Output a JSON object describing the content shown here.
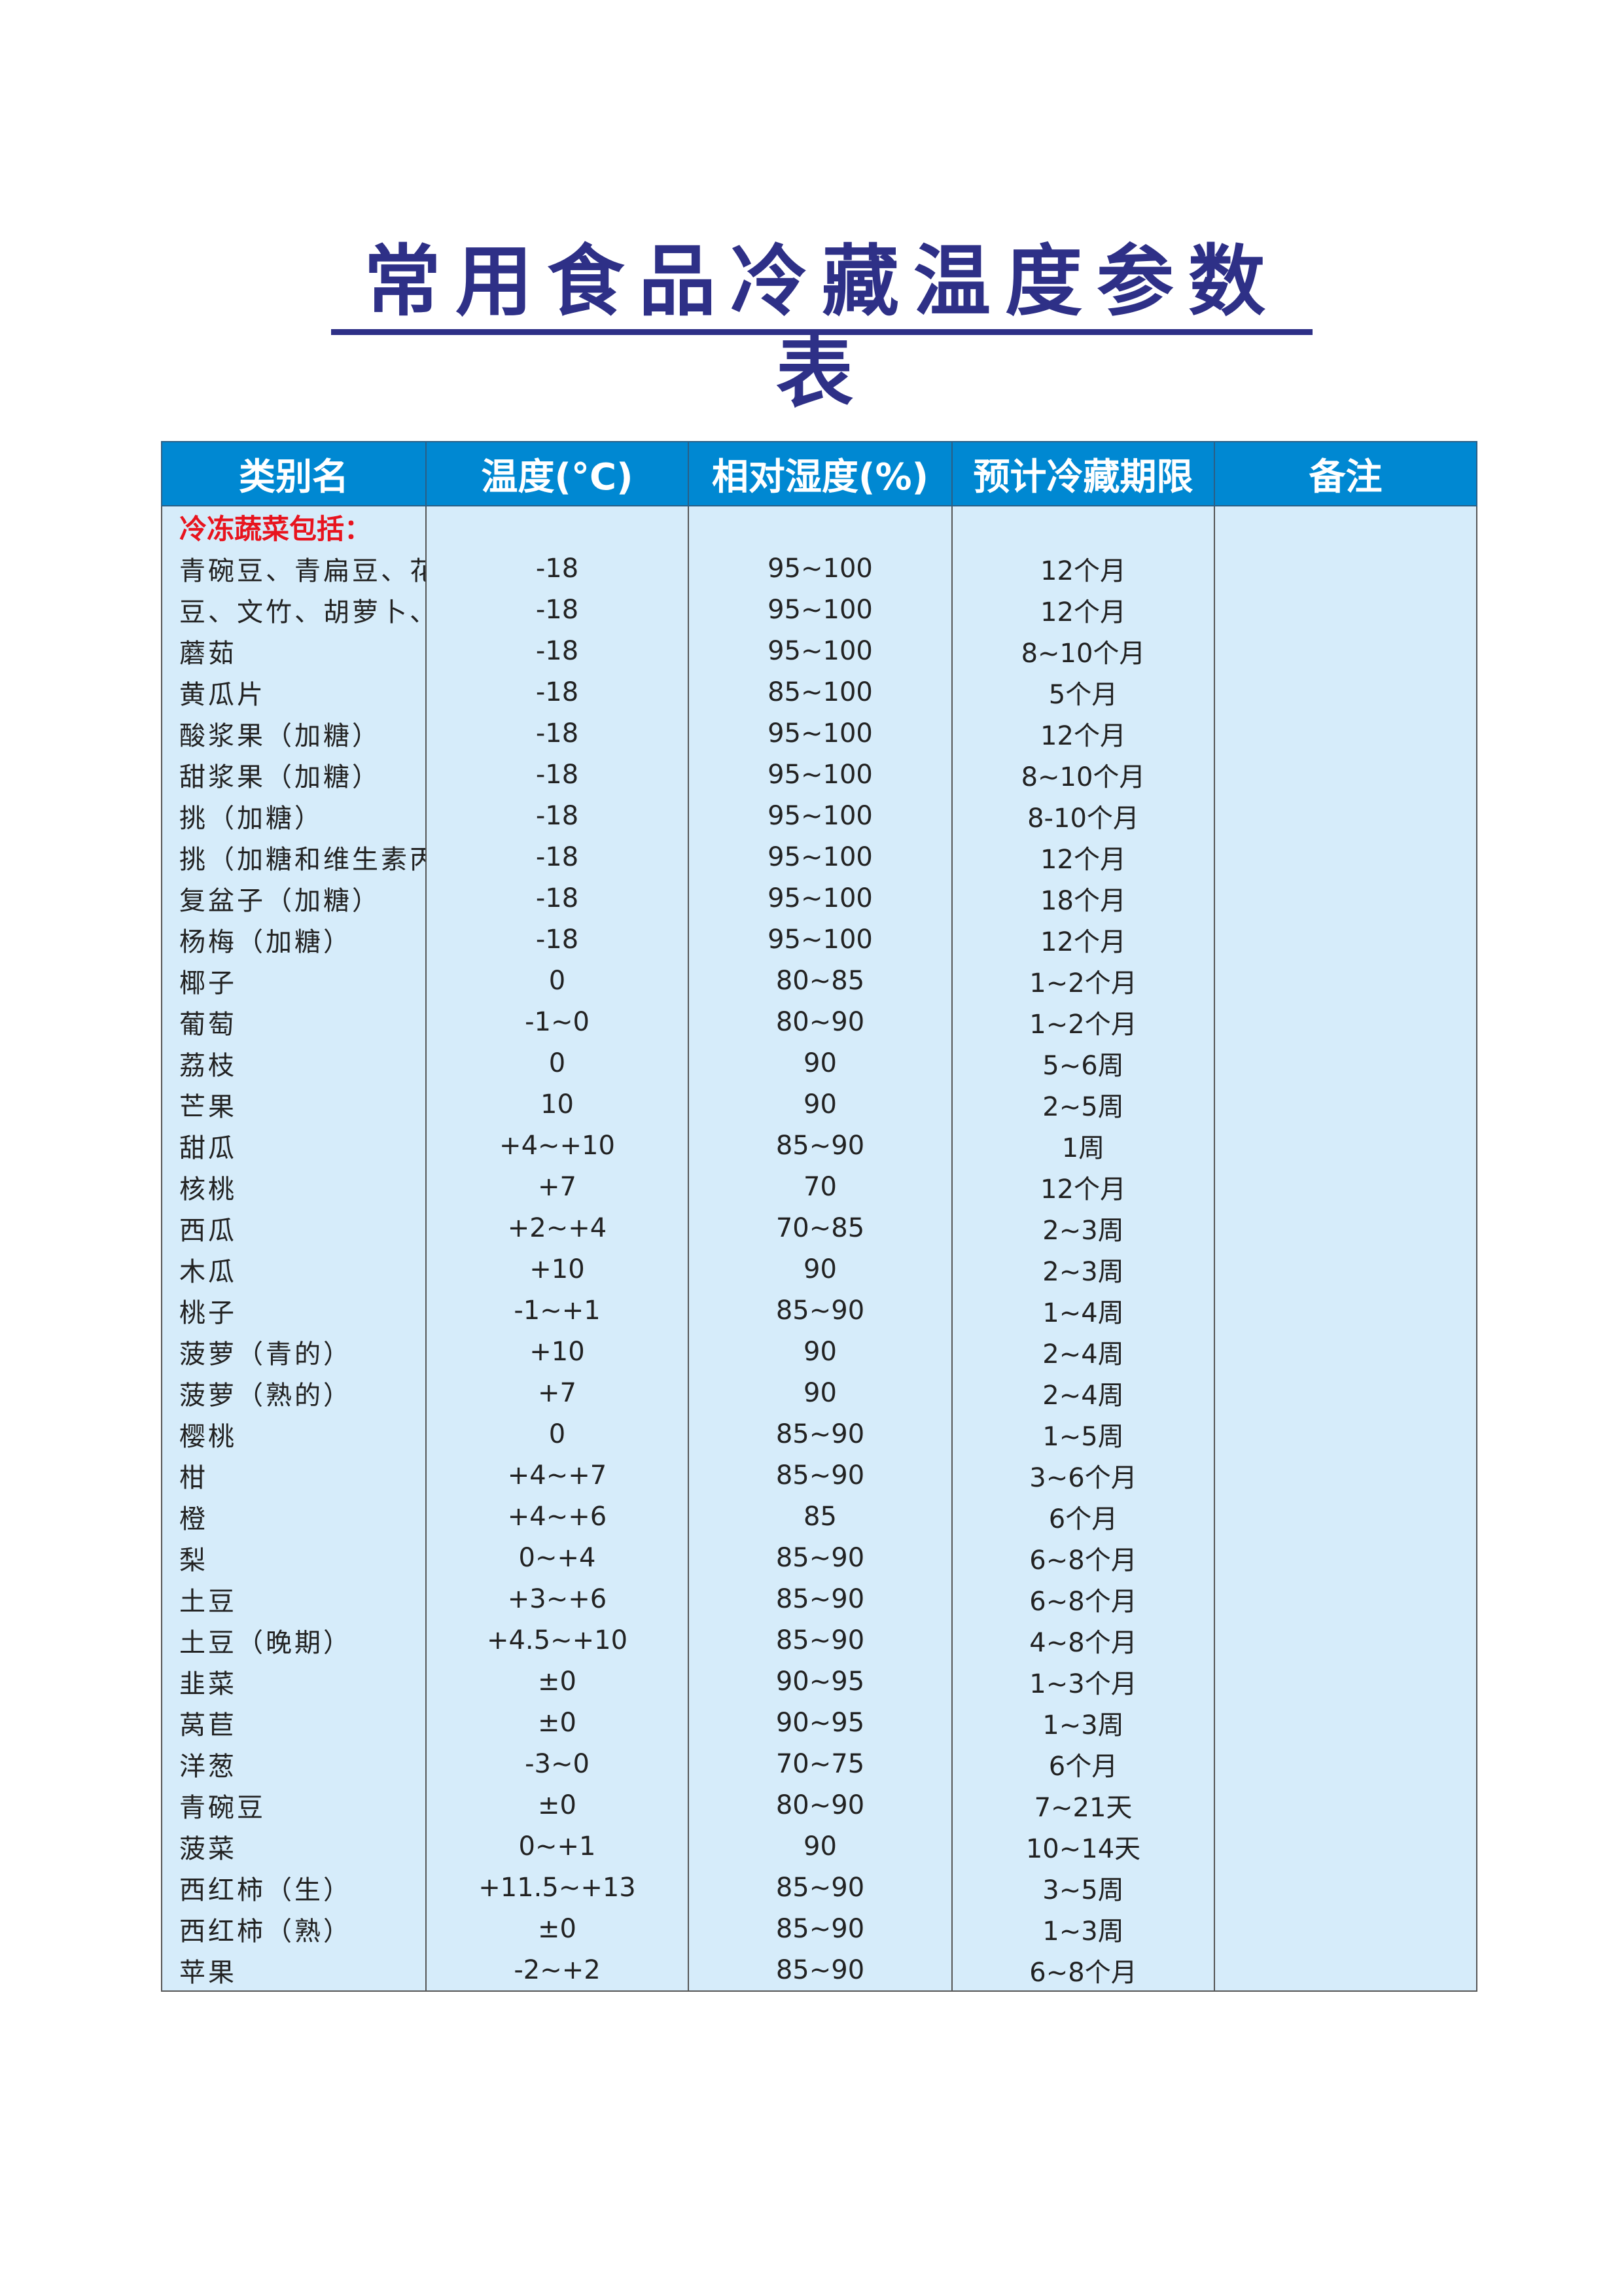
{
  "title": "常用食品冷藏温度参数表",
  "colors": {
    "title": "#2e3087",
    "header_bg": "#0088d2",
    "cell_bg": "#d6ecfa",
    "group_label": "#e8141e"
  },
  "headers": [
    "类别名",
    "温度(°C)",
    "相对湿度(%)",
    "预计冷藏期限",
    "备注"
  ],
  "group_label": "冷冻蔬菜包括：",
  "rows": [
    [
      "青碗豆、青扁豆、花椰",
      "-18",
      "95~100",
      "12个月",
      ""
    ],
    [
      "豆、文竹、胡萝卜、菠菜等",
      "-18",
      "95~100",
      "12个月",
      ""
    ],
    [
      "蘑茹",
      "-18",
      "95~100",
      "8~10个月",
      ""
    ],
    [
      "黄瓜片",
      "-18",
      "85~100",
      "5个月",
      ""
    ],
    [
      "酸浆果（加糖）",
      "-18",
      "95~100",
      "12个月",
      ""
    ],
    [
      "甜浆果（加糖）",
      "-18",
      "95~100",
      "8~10个月",
      ""
    ],
    [
      "挑（加糖）",
      "-18",
      "95~100",
      "8-10个月",
      ""
    ],
    [
      "挑（加糖和维生素丙）",
      "-18",
      "95~100",
      "12个月",
      ""
    ],
    [
      "复盆子（加糖）",
      "-18",
      "95~100",
      "18个月",
      ""
    ],
    [
      "杨梅（加糖）",
      "-18",
      "95~100",
      "12个月",
      ""
    ],
    [
      "椰子",
      "0",
      "80~85",
      "1~2个月",
      ""
    ],
    [
      "葡萄",
      "-1~0",
      "80~90",
      "1~2个月",
      ""
    ],
    [
      "荔枝",
      "0",
      "90",
      "5~6周",
      ""
    ],
    [
      "芒果",
      "10",
      "90",
      "2~5周",
      ""
    ],
    [
      "甜瓜",
      "+4~+10",
      "85~90",
      "1周",
      ""
    ],
    [
      "核桃",
      "+7",
      "70",
      "12个月",
      ""
    ],
    [
      "西瓜",
      "+2~+4",
      "70~85",
      "2~3周",
      ""
    ],
    [
      "木瓜",
      "+10",
      "90",
      "2~3周",
      ""
    ],
    [
      "桃子",
      "-1~+1",
      "85~90",
      "1~4周",
      ""
    ],
    [
      "菠萝（青的）",
      "+10",
      "90",
      "2~4周",
      ""
    ],
    [
      "菠萝（熟的）",
      "+7",
      "90",
      "2~4周",
      ""
    ],
    [
      "樱桃",
      "0",
      "85~90",
      "1~5周",
      ""
    ],
    [
      "柑",
      "+4~+7",
      "85~90",
      "3~6个月",
      ""
    ],
    [
      "橙",
      "+4~+6",
      "85",
      "6个月",
      ""
    ],
    [
      "梨",
      "0~+4",
      "85~90",
      "6~8个月",
      ""
    ],
    [
      "土豆",
      "+3~+6",
      "85~90",
      "6~8个月",
      ""
    ],
    [
      "土豆（晚期）",
      "+4.5~+10",
      "85~90",
      "4~8个月",
      ""
    ],
    [
      "韭菜",
      "±0",
      "90~95",
      "1~3个月",
      ""
    ],
    [
      "莴苣",
      "±0",
      "90~95",
      "1~3周",
      ""
    ],
    [
      "洋葱",
      "-3~0",
      "70~75",
      "6个月",
      ""
    ],
    [
      "青碗豆",
      "±0",
      "80~90",
      "7~21天",
      ""
    ],
    [
      "菠菜",
      "0~+1",
      "90",
      "10~14天",
      ""
    ],
    [
      "西红柿（生）",
      "+11.5~+13",
      "85~90",
      "3~5周",
      ""
    ],
    [
      "西红柿（熟）",
      "±0",
      "85~90",
      "1~3周",
      ""
    ],
    [
      "苹果",
      "-2~+2",
      "85~90",
      "6~8个月",
      ""
    ]
  ]
}
